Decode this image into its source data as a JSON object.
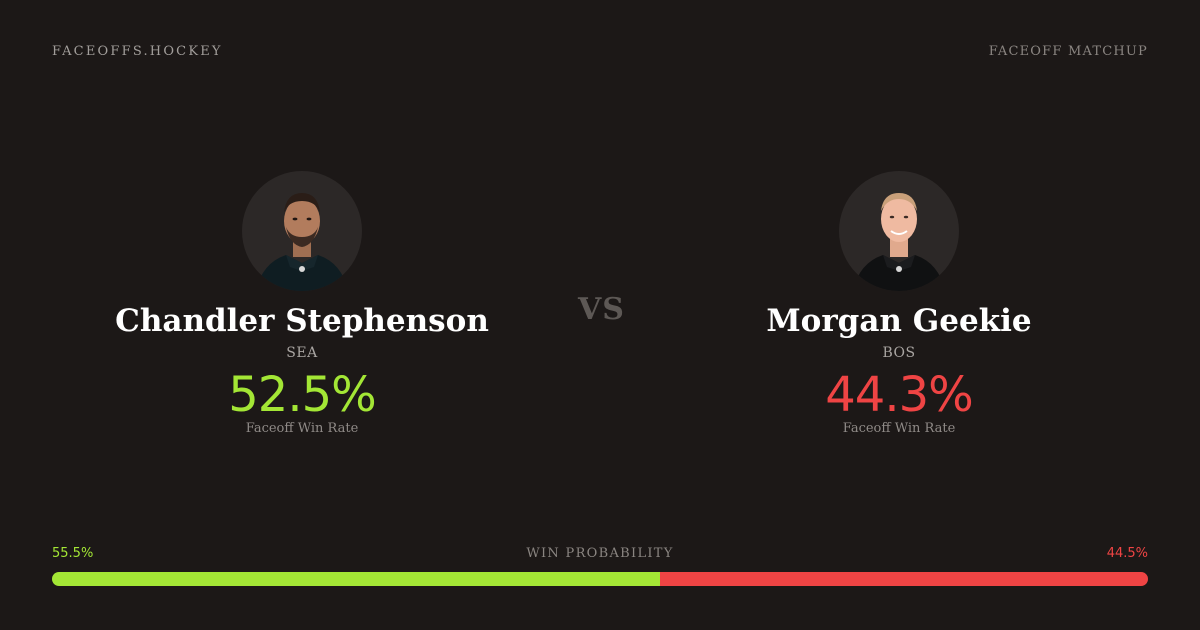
{
  "header": {
    "brand": "FACEOFFS.HOCKEY",
    "page_label": "FACEOFF MATCHUP"
  },
  "colors": {
    "background": "#1c1817",
    "accent_green": "#a3e635",
    "accent_red": "#ef4444"
  },
  "players": [
    {
      "name": "Chandler Stephenson",
      "team": "SEA",
      "win_rate": "52.5%",
      "win_rate_caption": "Faceoff Win Rate",
      "color": "#a3e635",
      "photo_icon": "player-headshot-icon"
    },
    {
      "name": "Morgan Geekie",
      "team": "BOS",
      "win_rate": "44.3%",
      "win_rate_caption": "Faceoff Win Rate",
      "color": "#ef4444",
      "photo_icon": "player-headshot-icon"
    }
  ],
  "vs_label": "VS",
  "probability": {
    "title": "WIN PROBABILITY",
    "left_label": "55.5%",
    "right_label": "44.5%",
    "left_value": 0.555,
    "right_value": 0.445
  }
}
